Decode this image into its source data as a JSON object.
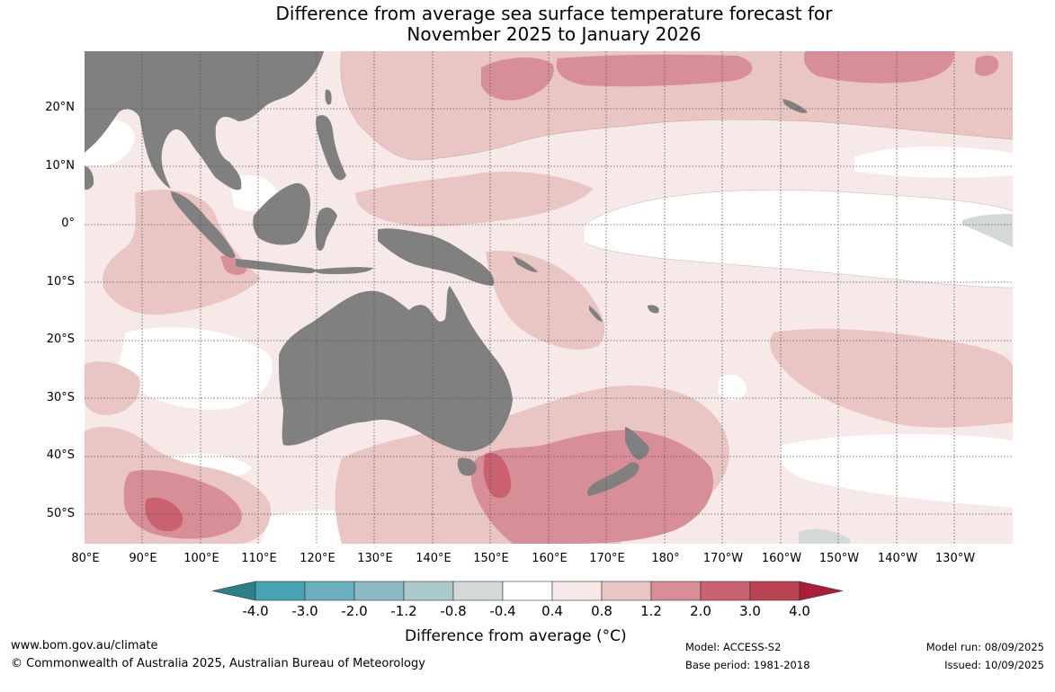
{
  "title_line1": "Difference from average sea surface temperature forecast for",
  "title_line2": "November 2025 to January 2026",
  "lat_ticks": [
    "20°N",
    "10°N",
    "0°",
    "10°S",
    "20°S",
    "30°S",
    "40°S",
    "50°S"
  ],
  "lon_ticks": [
    "80°E",
    "90°E",
    "100°E",
    "110°E",
    "120°E",
    "130°E",
    "140°E",
    "150°E",
    "160°E",
    "170°E",
    "180°",
    "170°W",
    "160°W",
    "150°W",
    "140°W",
    "130°W"
  ],
  "colorbar": {
    "labels": [
      "-4.0",
      "-3.0",
      "-2.0",
      "-1.2",
      "-0.8",
      "-0.4",
      "0.4",
      "0.8",
      "1.2",
      "2.0",
      "3.0",
      "4.0"
    ],
    "colors": [
      "#2f7f8a",
      "#47a3b3",
      "#6aafbe",
      "#8cbbc4",
      "#acc9cc",
      "#d3d9d9",
      "#ffffff",
      "#f6e9e8",
      "#e9c6c3",
      "#d88e96",
      "#c9616f",
      "#bc4452",
      "#a91e38"
    ],
    "title": "Difference from average (°C)"
  },
  "colors": {
    "land": "#808080",
    "very_light": "#f6e9e8",
    "light": "#e9c6c3",
    "medium": "#d88e96",
    "strong": "#c9616f",
    "cool": "#d3d9d9"
  },
  "footer": {
    "website": "www.bom.gov.au/climate",
    "copyright": "© Commonwealth of Australia 2025, Australian Bureau of Meteorology",
    "model": "Model: ACCESS-S2",
    "base_period": "Base period: 1981-2018",
    "model_run": "Model run: 08/09/2025",
    "issued": "Issued: 10/09/2025"
  }
}
